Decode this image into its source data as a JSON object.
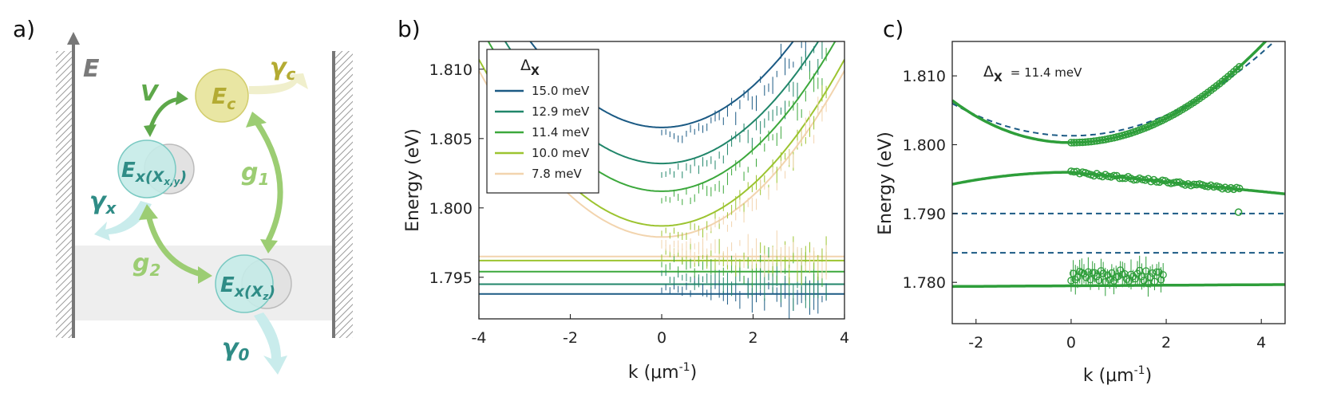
{
  "panel_labels": {
    "a": "a)",
    "b": "b)",
    "c": "c)"
  },
  "diagram": {
    "energy_axis_label": "E",
    "ec_label": "E",
    "ec_sub": "c",
    "exxy_label": "E",
    "exxy_sub": "x(X",
    "exxy_subsub": "x,y",
    "exxy_close": ")",
    "exz_label": "E",
    "exz_sub": "x(X",
    "exz_subsub": "z",
    "exz_close": ")",
    "v_label": "V",
    "g1_label": "g",
    "g1_sub": "1",
    "g2_label": "g",
    "g2_sub": "2",
    "gamma_c": "γ",
    "gamma_c_sub": "c",
    "gamma_x": "γ",
    "gamma_x_sub": "x",
    "gamma_0": "γ",
    "gamma_0_sub": "0",
    "colors": {
      "ec_fill": "#e9e6a3",
      "ec_text": "#b4ab33",
      "ex_fill": "#c5ebe8",
      "ex_text": "#2f8c86",
      "arrow_green": "#78b957",
      "g_text": "#9ccd73",
      "gamma_x_arrow": "#c9ecec",
      "gamma_c_arrow": "#f0efcc",
      "band": "#eeeeee",
      "wall": "#777777"
    }
  },
  "chart_data": [
    {
      "id": "b",
      "type": "line",
      "xlabel": "k (μm",
      "xlabel_sup": "-1",
      "xlabel_close": ")",
      "ylabel": "Energy (eV)",
      "xlim": [
        -4,
        4
      ],
      "ylim": [
        1.792,
        1.812
      ],
      "xticks": [
        -4,
        -2,
        0,
        2,
        4
      ],
      "xticklabels": [
        "-4",
        "-2",
        "0",
        "2",
        "4"
      ],
      "yticks": [
        1.795,
        1.8,
        1.805,
        1.81
      ],
      "yticklabels": [
        "1.795",
        "1.800",
        "1.805",
        "1.810"
      ],
      "legend_title": "Δ",
      "legend_title_sub": "X",
      "legend_position": "top-left",
      "series": [
        {
          "name": "15.0 meV",
          "color": "#1b5a84",
          "upper_min": 1.8052,
          "lower_min": 1.7944,
          "dx": 0.015
        },
        {
          "name": "12.9 meV",
          "color": "#21866a",
          "upper_min": 1.8026,
          "lower_min": 1.7951,
          "dx": 0.0129
        },
        {
          "name": "11.4 meV",
          "color": "#3ca83c",
          "upper_min": 1.8006,
          "lower_min": 1.796,
          "dx": 0.0114
        },
        {
          "name": "10.0 meV",
          "color": "#9cc430",
          "upper_min": 1.7981,
          "lower_min": 1.7968,
          "dx": 0.01
        },
        {
          "name": "7.8 meV",
          "color": "#f2d4ae",
          "upper_min": 1.7973,
          "lower_min": 1.7971,
          "dx": 0.0078
        }
      ]
    },
    {
      "id": "c",
      "type": "line",
      "xlabel": "k (μm",
      "xlabel_sup": "-1",
      "xlabel_close": ")",
      "ylabel": "Energy (eV)",
      "xlim": [
        -2.5,
        4.5
      ],
      "ylim": [
        1.774,
        1.815
      ],
      "xticks": [
        -2,
        0,
        2,
        4
      ],
      "xticklabels": [
        "-2",
        "0",
        "2",
        "4"
      ],
      "yticks": [
        1.78,
        1.79,
        1.8,
        1.81
      ],
      "yticklabels": [
        "1.780",
        "1.790",
        "1.800",
        "1.810"
      ],
      "annotation": "Δ",
      "annotation_sub": "X",
      "annotation_value": "= 11.4 meV",
      "solid_color": "#2e9e3a",
      "dashed_color": "#1b5a84",
      "upper_min": 1.8003,
      "middle_max": 1.796,
      "middle_k4": 1.7932,
      "lower_level": 1.7795,
      "dashed_levels": [
        1.79,
        1.7843
      ],
      "dashed_parabola_min": 1.8013
    }
  ]
}
